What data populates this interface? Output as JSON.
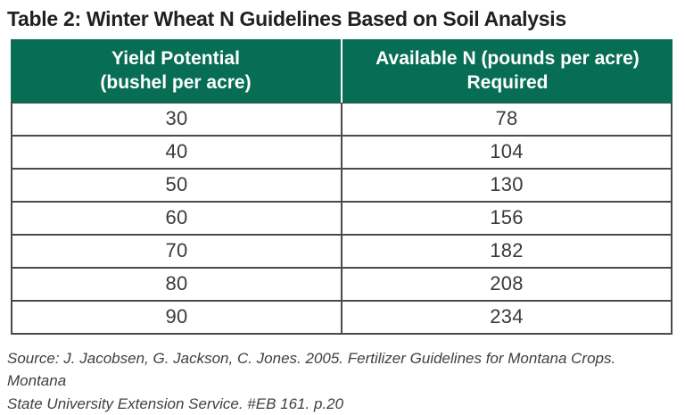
{
  "title": "Table 2: Winter Wheat N Guidelines Based on Soil Analysis",
  "table": {
    "columns": [
      {
        "line1": "Yield Potential",
        "line2": "(bushel per acre)"
      },
      {
        "line1": "Available N (pounds per acre)",
        "line2": "Required"
      }
    ],
    "rows": [
      {
        "yield": "30",
        "n": "78"
      },
      {
        "yield": "40",
        "n": "104"
      },
      {
        "yield": "50",
        "n": "130"
      },
      {
        "yield": "60",
        "n": "156"
      },
      {
        "yield": "70",
        "n": "182"
      },
      {
        "yield": "80",
        "n": "208"
      },
      {
        "yield": "90",
        "n": "234"
      }
    ]
  },
  "source": {
    "line1": "Source: J. Jacobsen, G. Jackson, C. Jones. 2005. Fertilizer Guidelines for Montana Crops. Montana",
    "line2": "State University Extension Service. #EB 161. p.20"
  },
  "colors": {
    "header_bg": "#076e55",
    "header_text": "#ffffff",
    "border": "#4a4a4a",
    "title_text": "#231f20",
    "body_text": "#3a3a3a",
    "source_text": "#404040"
  }
}
